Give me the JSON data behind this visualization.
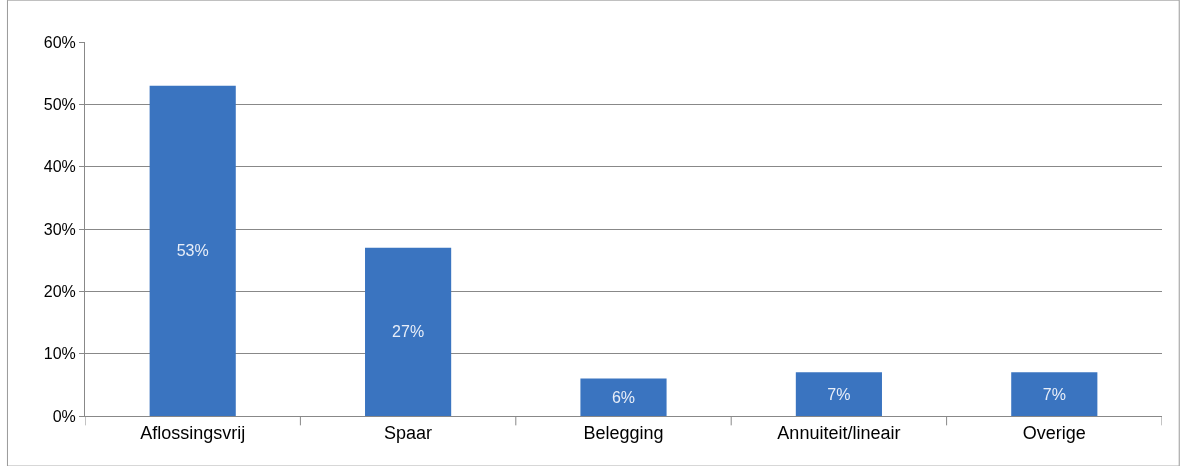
{
  "chart_data": {
    "type": "bar",
    "categories": [
      "Aflossingsvrij",
      "Spaar",
      "Belegging",
      "Annuiteit/lineair",
      "Overige"
    ],
    "values": [
      53,
      27,
      6,
      7,
      7
    ],
    "value_labels": [
      "53%",
      "27%",
      "6%",
      "7%",
      "7%"
    ],
    "color": "#3a74c0",
    "ylim": [
      0,
      60
    ],
    "yticks": [
      {
        "value": 0,
        "label": "0%"
      },
      {
        "value": 10,
        "label": "10%"
      },
      {
        "value": 20,
        "label": "20%"
      },
      {
        "value": 30,
        "label": "30%"
      },
      {
        "value": 40,
        "label": "40%"
      },
      {
        "value": 50,
        "label": "50%"
      },
      {
        "value": 60,
        "label": "60%"
      }
    ],
    "grid": "y",
    "legend": false
  }
}
